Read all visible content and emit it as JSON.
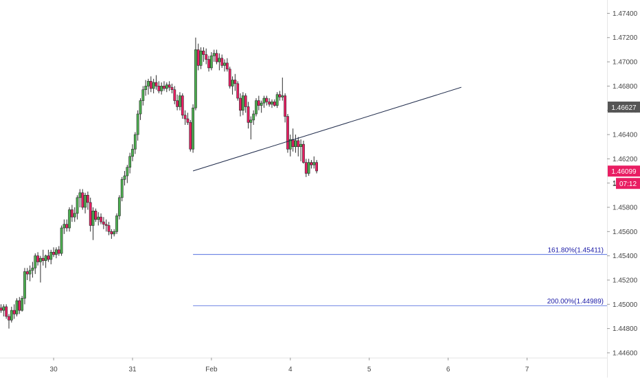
{
  "chart_data": {
    "type": "candlestick",
    "title": "",
    "xlabel": "",
    "ylabel": "",
    "ylim": [
      1.4456,
      1.4751
    ],
    "y_ticks": [
      "1.47400",
      "1.47200",
      "1.47000",
      "1.46800",
      "1.46600",
      "1.46400",
      "1.46200",
      "1.46000",
      "1.45800",
      "1.45600",
      "1.45400",
      "1.45200",
      "1.45000",
      "1.44800",
      "1.44600"
    ],
    "y_tick_values": [
      1.474,
      1.472,
      1.47,
      1.468,
      1.466,
      1.464,
      1.462,
      1.46,
      1.458,
      1.456,
      1.454,
      1.452,
      1.45,
      1.448,
      1.446
    ],
    "x_ticks": [
      {
        "label": "30",
        "index": 20
      },
      {
        "label": "31",
        "index": 50
      },
      {
        "label": "Feb",
        "index": 80
      },
      {
        "label": "4",
        "index": 110
      },
      {
        "label": "5",
        "index": 140
      },
      {
        "label": "6",
        "index": 170
      },
      {
        "label": "7",
        "index": 200
      }
    ],
    "grid": false,
    "candles": [
      [
        1.4497,
        1.45,
        1.4493,
        1.4495
      ],
      [
        1.4495,
        1.45,
        1.449,
        1.4498
      ],
      [
        1.4498,
        1.45,
        1.4488,
        1.449
      ],
      [
        1.449,
        1.4492,
        1.448,
        1.4487
      ],
      [
        1.4487,
        1.4498,
        1.4485,
        1.4495
      ],
      [
        1.4495,
        1.45,
        1.4488,
        1.4492
      ],
      [
        1.4492,
        1.4505,
        1.449,
        1.4503
      ],
      [
        1.4503,
        1.4506,
        1.4492,
        1.4495
      ],
      [
        1.4495,
        1.4507,
        1.4494,
        1.4505
      ],
      [
        1.4505,
        1.453,
        1.45,
        1.4527
      ],
      [
        1.4527,
        1.453,
        1.452,
        1.4525
      ],
      [
        1.4525,
        1.4532,
        1.4519,
        1.4528
      ],
      [
        1.4528,
        1.4535,
        1.4522,
        1.453
      ],
      [
        1.453,
        1.4542,
        1.4525,
        1.454
      ],
      [
        1.454,
        1.4543,
        1.4532,
        1.4535
      ],
      [
        1.4535,
        1.454,
        1.4518,
        1.4538
      ],
      [
        1.4538,
        1.4545,
        1.4532,
        1.4536
      ],
      [
        1.4536,
        1.4541,
        1.453,
        1.454
      ],
      [
        1.454,
        1.4545,
        1.4535,
        1.4537
      ],
      [
        1.4537,
        1.4545,
        1.4533,
        1.4543
      ],
      [
        1.4543,
        1.4547,
        1.4539,
        1.4541
      ],
      [
        1.4541,
        1.4547,
        1.4538,
        1.4545
      ],
      [
        1.4545,
        1.4548,
        1.454,
        1.4542
      ],
      [
        1.4542,
        1.4565,
        1.454,
        1.4563
      ],
      [
        1.4563,
        1.457,
        1.4558,
        1.4566
      ],
      [
        1.4566,
        1.457,
        1.456,
        1.4563
      ],
      [
        1.4563,
        1.458,
        1.456,
        1.4578
      ],
      [
        1.4578,
        1.4582,
        1.4568,
        1.4572
      ],
      [
        1.4572,
        1.458,
        1.4568,
        1.4575
      ],
      [
        1.4575,
        1.459,
        1.457,
        1.4588
      ],
      [
        1.4588,
        1.4595,
        1.458,
        1.4592
      ],
      [
        1.4592,
        1.4595,
        1.4578,
        1.458
      ],
      [
        1.458,
        1.4592,
        1.4575,
        1.459
      ],
      [
        1.459,
        1.4593,
        1.4578,
        1.4584
      ],
      [
        1.4584,
        1.4588,
        1.456,
        1.4565
      ],
      [
        1.4565,
        1.458,
        1.4553,
        1.4577
      ],
      [
        1.4577,
        1.4579,
        1.4568,
        1.457
      ],
      [
        1.457,
        1.4576,
        1.4565,
        1.4572
      ],
      [
        1.4572,
        1.4575,
        1.4566,
        1.4568
      ],
      [
        1.4568,
        1.4572,
        1.4562,
        1.4566
      ],
      [
        1.4566,
        1.457,
        1.456,
        1.4565
      ],
      [
        1.4565,
        1.4568,
        1.4557,
        1.456
      ],
      [
        1.456,
        1.4562,
        1.4554,
        1.4558
      ],
      [
        1.4558,
        1.4562,
        1.4556,
        1.456
      ],
      [
        1.456,
        1.4575,
        1.4558,
        1.4573
      ],
      [
        1.4573,
        1.459,
        1.457,
        1.4588
      ],
      [
        1.4588,
        1.4605,
        1.4585,
        1.4603
      ],
      [
        1.4603,
        1.461,
        1.4598,
        1.4606
      ],
      [
        1.4606,
        1.4615,
        1.46,
        1.4613
      ],
      [
        1.4613,
        1.4625,
        1.4608,
        1.4622
      ],
      [
        1.4622,
        1.4632,
        1.4618,
        1.4628
      ],
      [
        1.4628,
        1.4642,
        1.4624,
        1.464
      ],
      [
        1.464,
        1.466,
        1.4635,
        1.4657
      ],
      [
        1.4657,
        1.467,
        1.4652,
        1.4668
      ],
      [
        1.4668,
        1.468,
        1.4664,
        1.4677
      ],
      [
        1.4677,
        1.4685,
        1.4672,
        1.468
      ],
      [
        1.468,
        1.4686,
        1.4673,
        1.4684
      ],
      [
        1.4684,
        1.4688,
        1.4675,
        1.4678
      ],
      [
        1.4678,
        1.4686,
        1.4674,
        1.4683
      ],
      [
        1.4683,
        1.4689,
        1.4677,
        1.468
      ],
      [
        1.468,
        1.4684,
        1.4674,
        1.4676
      ],
      [
        1.4676,
        1.4683,
        1.4673,
        1.468
      ],
      [
        1.468,
        1.4684,
        1.4676,
        1.4678
      ],
      [
        1.4678,
        1.4683,
        1.4675,
        1.4681
      ],
      [
        1.4681,
        1.4684,
        1.4676,
        1.4679
      ],
      [
        1.4679,
        1.4682,
        1.4674,
        1.4677
      ],
      [
        1.4677,
        1.468,
        1.4665,
        1.4668
      ],
      [
        1.4668,
        1.4673,
        1.466,
        1.4663
      ],
      [
        1.4663,
        1.4675,
        1.466,
        1.4672
      ],
      [
        1.4672,
        1.4674,
        1.4653,
        1.4656
      ],
      [
        1.4656,
        1.466,
        1.4648,
        1.4653
      ],
      [
        1.4653,
        1.4658,
        1.4648,
        1.465
      ],
      [
        1.465,
        1.4652,
        1.4626,
        1.4628
      ],
      [
        1.4628,
        1.4665,
        1.4625,
        1.4662
      ],
      [
        1.4662,
        1.472,
        1.466,
        1.471
      ],
      [
        1.471,
        1.4715,
        1.4693,
        1.4697
      ],
      [
        1.4697,
        1.4712,
        1.4694,
        1.4709
      ],
      [
        1.4709,
        1.4712,
        1.47,
        1.4706
      ],
      [
        1.4706,
        1.4711,
        1.4698,
        1.4702
      ],
      [
        1.4702,
        1.4705,
        1.4692,
        1.4695
      ],
      [
        1.4695,
        1.4708,
        1.4693,
        1.4705
      ],
      [
        1.4705,
        1.471,
        1.47,
        1.4707
      ],
      [
        1.4707,
        1.471,
        1.4698,
        1.47
      ],
      [
        1.47,
        1.4707,
        1.4693,
        1.4703
      ],
      [
        1.4703,
        1.4706,
        1.4695,
        1.4697
      ],
      [
        1.4697,
        1.4702,
        1.4692,
        1.4699
      ],
      [
        1.4699,
        1.4703,
        1.4692,
        1.4694
      ],
      [
        1.4694,
        1.4696,
        1.4678,
        1.468
      ],
      [
        1.468,
        1.4688,
        1.4673,
        1.4685
      ],
      [
        1.4685,
        1.469,
        1.4676,
        1.4682
      ],
      [
        1.4682,
        1.4684,
        1.4668,
        1.467
      ],
      [
        1.467,
        1.4674,
        1.4655,
        1.466
      ],
      [
        1.466,
        1.4675,
        1.4656,
        1.4672
      ],
      [
        1.4672,
        1.4674,
        1.4658,
        1.4663
      ],
      [
        1.4663,
        1.4667,
        1.4645,
        1.465
      ],
      [
        1.465,
        1.4655,
        1.4636,
        1.4652
      ],
      [
        1.4652,
        1.466,
        1.4648,
        1.4657
      ],
      [
        1.4657,
        1.467,
        1.4655,
        1.4668
      ],
      [
        1.4668,
        1.4672,
        1.466,
        1.4664
      ],
      [
        1.4664,
        1.4668,
        1.4658,
        1.4666
      ],
      [
        1.4666,
        1.4672,
        1.4662,
        1.467
      ],
      [
        1.467,
        1.4672,
        1.4664,
        1.4667
      ],
      [
        1.4667,
        1.467,
        1.4663,
        1.4665
      ],
      [
        1.4665,
        1.4669,
        1.4662,
        1.4667
      ],
      [
        1.4667,
        1.4669,
        1.4663,
        1.4664
      ],
      [
        1.4664,
        1.4675,
        1.4662,
        1.4673
      ],
      [
        1.4673,
        1.4676,
        1.4668,
        1.4671
      ],
      [
        1.4671,
        1.4687,
        1.4668,
        1.4672
      ],
      [
        1.4672,
        1.4674,
        1.465,
        1.4655
      ],
      [
        1.4655,
        1.4657,
        1.4625,
        1.4628
      ],
      [
        1.4628,
        1.464,
        1.4622,
        1.4636
      ],
      [
        1.4636,
        1.4645,
        1.4626,
        1.463
      ],
      [
        1.463,
        1.464,
        1.4625,
        1.4635
      ],
      [
        1.4635,
        1.4638,
        1.4622,
        1.463
      ],
      [
        1.463,
        1.4636,
        1.4618,
        1.4632
      ],
      [
        1.4632,
        1.4635,
        1.4616,
        1.4617
      ],
      [
        1.4617,
        1.462,
        1.4605,
        1.4608
      ],
      [
        1.4608,
        1.462,
        1.4606,
        1.4617
      ],
      [
        1.4617,
        1.4619,
        1.4612,
        1.4615
      ],
      [
        1.4615,
        1.4622,
        1.4612,
        1.4617
      ],
      [
        1.4617,
        1.4619,
        1.4608,
        1.461
      ]
    ],
    "annotations": {
      "trendline": {
        "from": {
          "index": 73,
          "price": 1.461
        },
        "to": {
          "index": 175,
          "price": 1.4679
        }
      },
      "fib_levels": [
        {
          "label": "161.80%(1.45411)",
          "price": 1.45411,
          "from_index": 73
        },
        {
          "label": "200.00%(1.44989)",
          "price": 1.44989,
          "from_index": 73
        }
      ]
    },
    "price_labels": {
      "current": {
        "text": "1.46627",
        "price": 1.46627
      },
      "last": {
        "text": "1.46099",
        "price": 1.46099
      },
      "countdown": {
        "text": "07:12"
      },
      "countdown_prefix": "1."
    },
    "colors": {
      "up_body": "#4caf50",
      "down_body": "#e91e63",
      "wick": "#2c2c2c",
      "background": "#ffffff",
      "axis_text": "#444444",
      "trendline": "#1e2a4a",
      "fib_line": "#3b5bdb",
      "fib_text": "#1a1aa6",
      "current_label_bg": "#555555",
      "last_label_bg": "#e91e63"
    }
  }
}
